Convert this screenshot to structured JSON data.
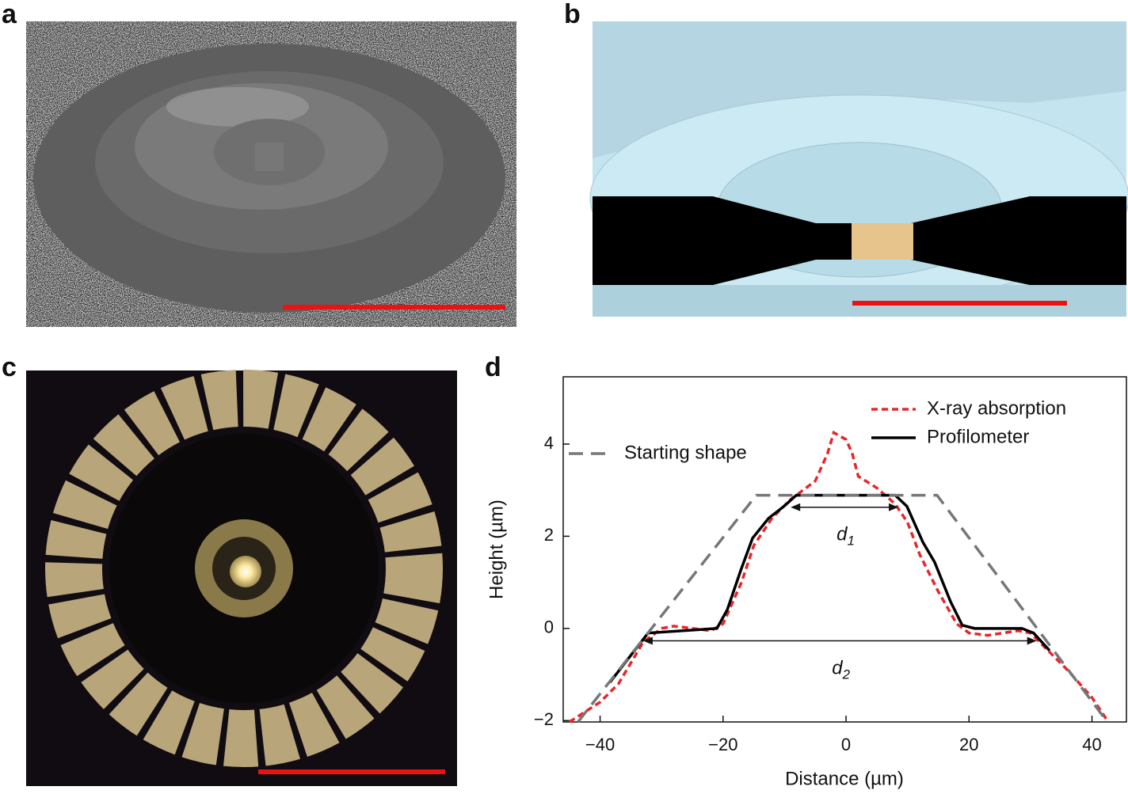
{
  "panel_labels": [
    "a",
    "b",
    "c",
    "d"
  ],
  "chart_data": {
    "type": "line",
    "xlabel": "Distance (µm)",
    "ylabel": "Height (µm)",
    "xlim": [
      -46,
      45.6
    ],
    "ylim": [
      -2.03,
      5.46
    ],
    "xticks": [
      {
        "value": -40,
        "label": "−40"
      },
      {
        "value": -20,
        "label": "−20"
      },
      0,
      20,
      40
    ],
    "yticks": [
      {
        "value": -2,
        "label": "−2"
      },
      0,
      2,
      4
    ],
    "series": [
      {
        "name": "X-ray absorption",
        "color": "#e8262a",
        "line_style": "dashed",
        "x": [
          -45,
          -40,
          -37,
          -33,
          -30,
          -28,
          -22,
          -20,
          -17,
          -15,
          -12,
          -9,
          -5,
          -3,
          -2,
          0,
          1,
          2,
          5,
          8,
          10,
          12,
          15,
          18,
          20,
          23,
          28,
          30,
          33,
          36,
          40,
          42.5
        ],
        "values": [
          -2.03,
          -1.6,
          -1.2,
          -0.3,
          0,
          0.05,
          -0.05,
          0.1,
          1.0,
          1.8,
          2.4,
          2.8,
          3.2,
          3.8,
          4.25,
          4.1,
          3.8,
          3.3,
          3.05,
          2.7,
          2.3,
          1.6,
          0.8,
          0.1,
          -0.1,
          -0.15,
          -0.05,
          -0.1,
          -0.5,
          -0.9,
          -1.5,
          -2.0
        ]
      },
      {
        "name": "Profilometer",
        "color": "#000000",
        "line_style": "solid",
        "x": [
          -38.4,
          -32.2,
          -21,
          -19.3,
          -17.1,
          -15.2,
          -12.6,
          -10.1,
          -8.1,
          8.0,
          9.9,
          12.5,
          14.4,
          17.0,
          18.9,
          20.9,
          28.6,
          30.5,
          33.1
        ],
        "values": [
          -1.17,
          -0.1,
          0,
          0.41,
          1.27,
          1.96,
          2.39,
          2.65,
          2.89,
          2.89,
          2.65,
          1.87,
          1.44,
          0.58,
          0.07,
          0,
          0,
          -0.1,
          -0.48
        ]
      },
      {
        "name": "Starting shape",
        "color": "#777777",
        "line_style": "dashed",
        "x": [
          -43.6,
          -14.6,
          14.8,
          42.5
        ],
        "values": [
          -2.03,
          2.89,
          2.89,
          -2.03
        ]
      }
    ],
    "annotations": [
      {
        "label": "d",
        "subscript": "1",
        "x_start": -9,
        "x_end": 8.5,
        "y": 2.63
      },
      {
        "label": "d",
        "subscript": "2",
        "x_start": -33,
        "x_end": 31,
        "y": -0.27
      }
    ]
  }
}
